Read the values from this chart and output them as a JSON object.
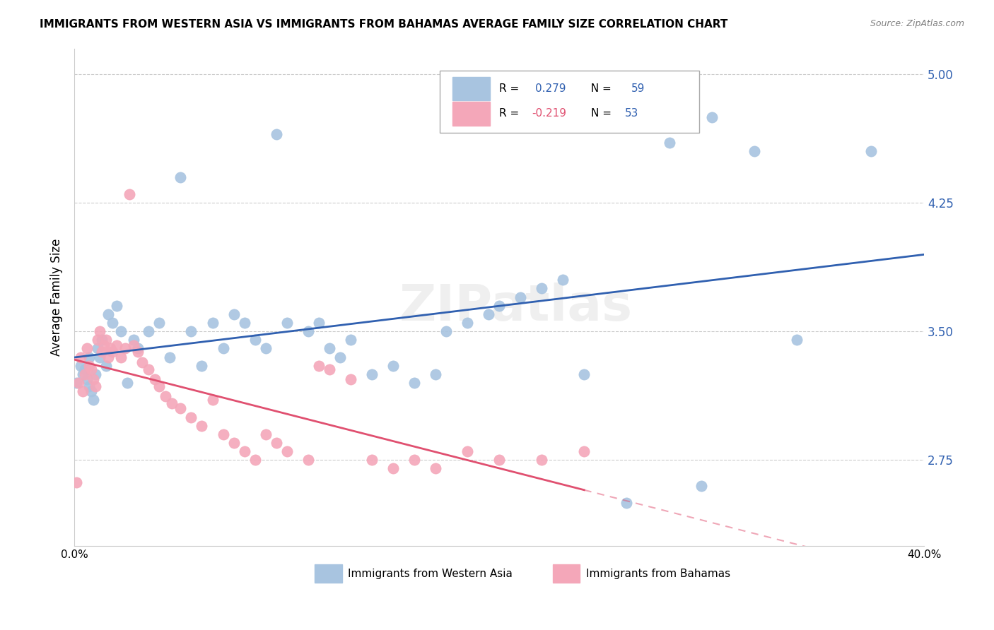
{
  "title": "IMMIGRANTS FROM WESTERN ASIA VS IMMIGRANTS FROM BAHAMAS AVERAGE FAMILY SIZE CORRELATION CHART",
  "source": "Source: ZipAtlas.com",
  "ylabel": "Average Family Size",
  "yticks": [
    2.75,
    3.5,
    4.25,
    5.0
  ],
  "xlim": [
    0.0,
    0.4
  ],
  "ylim": [
    2.25,
    5.15
  ],
  "legend_label_blue": "Immigrants from Western Asia",
  "legend_label_pink": "Immigrants from Bahamas",
  "blue_color": "#a8c4e0",
  "pink_color": "#f4a7b9",
  "blue_line_color": "#3060b0",
  "pink_line_color": "#e05070",
  "watermark": "ZIPatlas",
  "blue_x": [
    0.001,
    0.003,
    0.004,
    0.005,
    0.006,
    0.007,
    0.007,
    0.008,
    0.009,
    0.01,
    0.011,
    0.012,
    0.013,
    0.015,
    0.016,
    0.018,
    0.02,
    0.022,
    0.025,
    0.028,
    0.03,
    0.035,
    0.04,
    0.045,
    0.05,
    0.055,
    0.06,
    0.065,
    0.07,
    0.075,
    0.08,
    0.085,
    0.09,
    0.095,
    0.1,
    0.11,
    0.115,
    0.12,
    0.125,
    0.13,
    0.14,
    0.15,
    0.16,
    0.17,
    0.175,
    0.185,
    0.195,
    0.2,
    0.21,
    0.22,
    0.23,
    0.24,
    0.26,
    0.28,
    0.295,
    0.3,
    0.32,
    0.34,
    0.375
  ],
  "blue_y": [
    3.2,
    3.3,
    3.25,
    3.28,
    3.22,
    3.18,
    3.35,
    3.15,
    3.1,
    3.25,
    3.4,
    3.35,
    3.45,
    3.3,
    3.6,
    3.55,
    3.65,
    3.5,
    3.2,
    3.45,
    3.4,
    3.5,
    3.55,
    3.35,
    4.4,
    3.5,
    3.3,
    3.55,
    3.4,
    3.6,
    3.55,
    3.45,
    3.4,
    4.65,
    3.55,
    3.5,
    3.55,
    3.4,
    3.35,
    3.45,
    3.25,
    3.3,
    3.2,
    3.25,
    3.5,
    3.55,
    3.6,
    3.65,
    3.7,
    3.75,
    3.8,
    3.25,
    2.5,
    4.6,
    2.6,
    4.75,
    4.55,
    3.45,
    4.55
  ],
  "pink_x": [
    0.001,
    0.002,
    0.003,
    0.004,
    0.005,
    0.006,
    0.007,
    0.008,
    0.009,
    0.01,
    0.011,
    0.012,
    0.013,
    0.014,
    0.015,
    0.016,
    0.017,
    0.018,
    0.02,
    0.022,
    0.024,
    0.026,
    0.028,
    0.03,
    0.032,
    0.035,
    0.038,
    0.04,
    0.043,
    0.046,
    0.05,
    0.055,
    0.06,
    0.065,
    0.07,
    0.075,
    0.08,
    0.085,
    0.09,
    0.095,
    0.1,
    0.11,
    0.115,
    0.12,
    0.13,
    0.14,
    0.15,
    0.16,
    0.17,
    0.185,
    0.2,
    0.22,
    0.24
  ],
  "pink_y": [
    2.62,
    3.2,
    3.35,
    3.15,
    3.25,
    3.4,
    3.3,
    3.28,
    3.22,
    3.18,
    3.45,
    3.5,
    3.38,
    3.42,
    3.45,
    3.35,
    3.4,
    3.38,
    3.42,
    3.35,
    3.4,
    4.3,
    3.42,
    3.38,
    3.32,
    3.28,
    3.22,
    3.18,
    3.12,
    3.08,
    3.05,
    3.0,
    2.95,
    3.1,
    2.9,
    2.85,
    2.8,
    2.75,
    2.9,
    2.85,
    2.8,
    2.75,
    3.3,
    3.28,
    3.22,
    2.75,
    2.7,
    2.75,
    2.7,
    2.8,
    2.75,
    2.75,
    2.8
  ]
}
